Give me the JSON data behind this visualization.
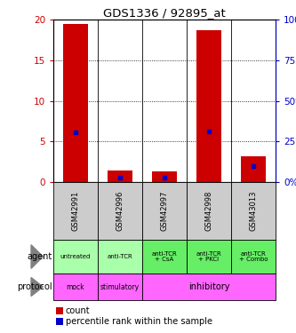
{
  "title": "GDS1336 / 92895_at",
  "samples": [
    "GSM42991",
    "GSM42996",
    "GSM42997",
    "GSM42998",
    "GSM43013"
  ],
  "counts": [
    19.5,
    1.4,
    1.3,
    18.7,
    3.2
  ],
  "percentile_ranks": [
    30.5,
    2.5,
    2.5,
    31.0,
    10.0
  ],
  "ylim_left": [
    0,
    20
  ],
  "ylim_right": [
    0,
    100
  ],
  "yticks_left": [
    0,
    5,
    10,
    15,
    20
  ],
  "yticks_right": [
    0,
    25,
    50,
    75,
    100
  ],
  "agent_labels": [
    "untreated",
    "anti-TCR",
    "anti-TCR\n+ CsA",
    "anti-TCR\n+ PKCi",
    "anti-TCR\n+ Combo"
  ],
  "protocol_spans": [
    {
      "label": "mock",
      "start": 0,
      "end": 1
    },
    {
      "label": "stimulatory",
      "start": 1,
      "end": 2
    },
    {
      "label": "inhibitory",
      "start": 2,
      "end": 5
    }
  ],
  "bar_color": "#cc0000",
  "percentile_color": "#0000cc",
  "agent_bg": "#aaffaa",
  "agent_bg_dark": "#66ee66",
  "protocol_bg": "#ff66ff",
  "sample_bg": "#cccccc",
  "left_axis_color": "#cc0000",
  "right_axis_color": "#0000cc",
  "bar_width": 0.55
}
